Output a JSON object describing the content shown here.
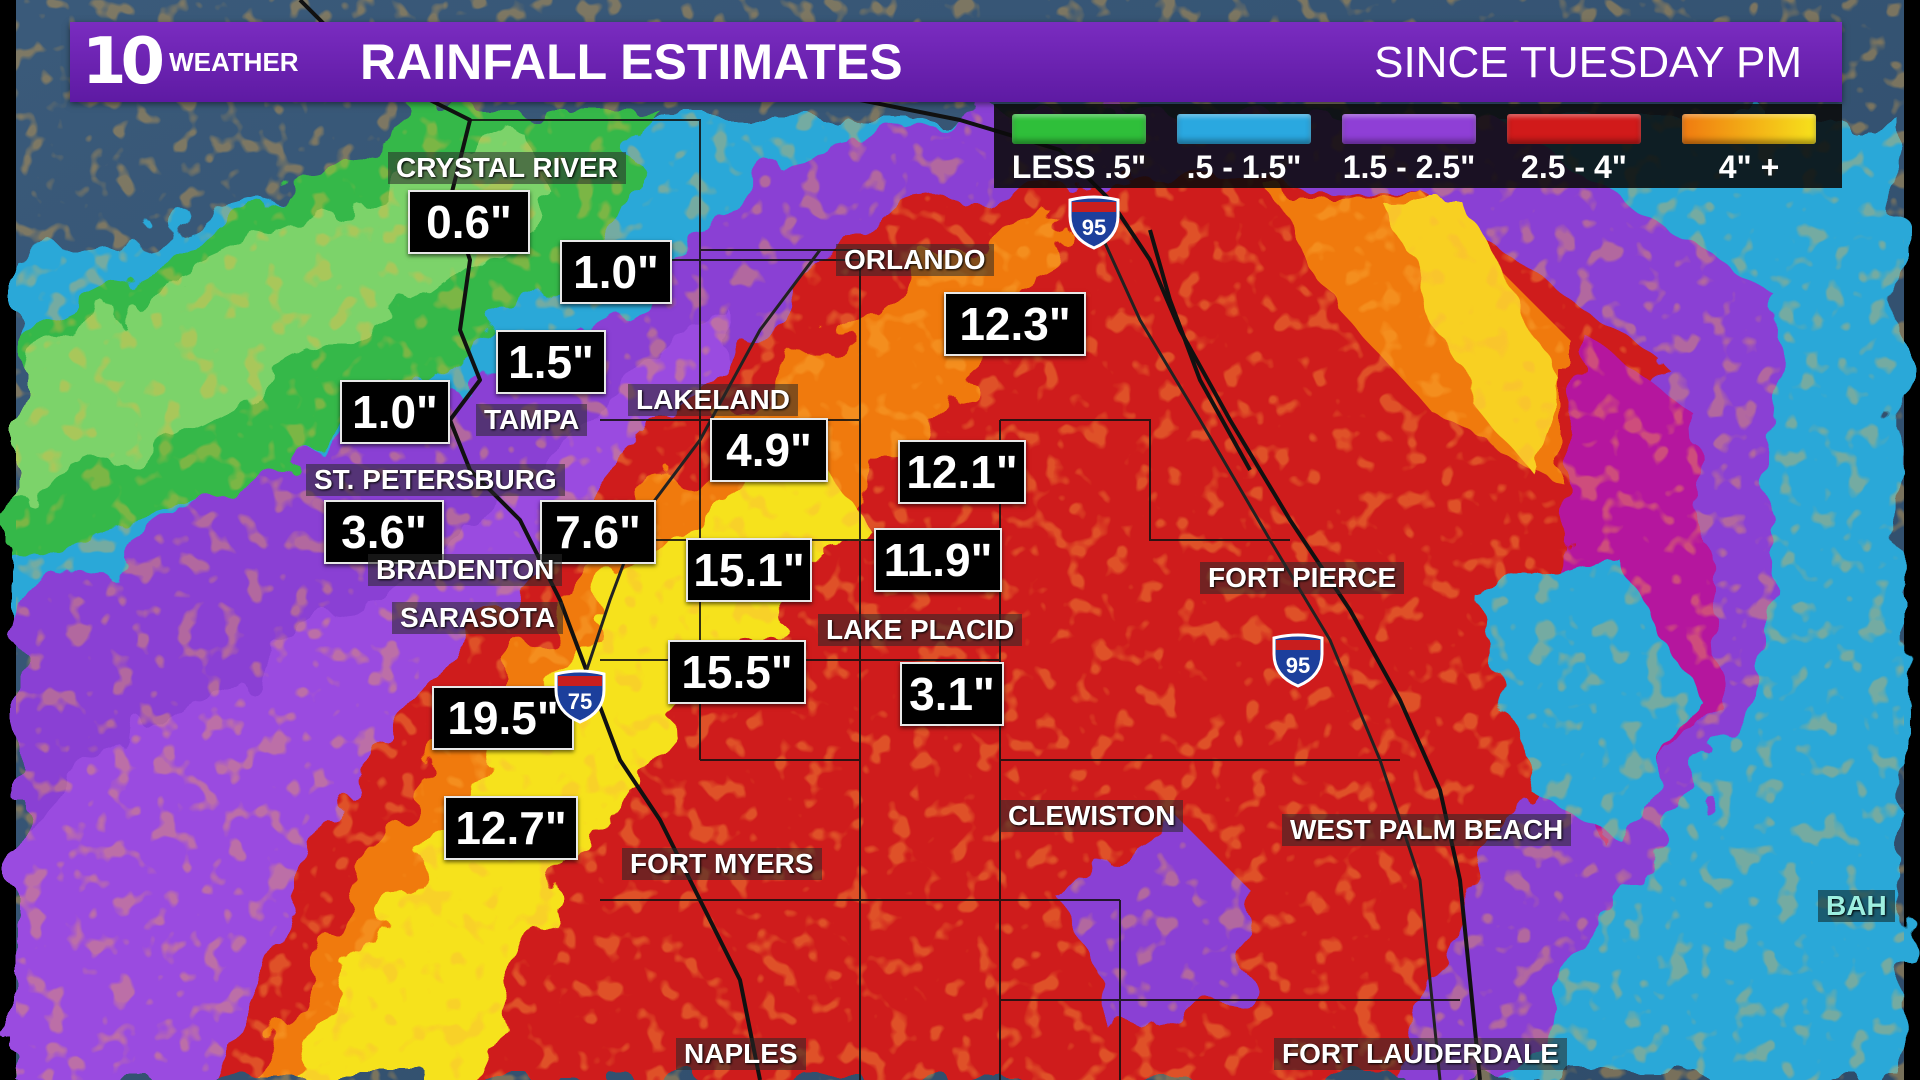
{
  "banner": {
    "logo_number": "10",
    "logo_word": "WEATHER",
    "title": "RAINFALL ESTIMATES",
    "subtitle": "SINCE TUESDAY PM",
    "color": "#6a22b1"
  },
  "legend": [
    {
      "label": "LESS .5\"",
      "color": "#2fbf3a"
    },
    {
      "label": ".5 - 1.5\"",
      "color": "#2aa8e0"
    },
    {
      "label": "1.5 - 2.5\"",
      "color": "#8f3fd6"
    },
    {
      "label": "2.5 - 4\"",
      "color": "#d11a1a"
    },
    {
      "label": "4\" +",
      "color": "#f4c21a"
    }
  ],
  "values": [
    "0.6\"",
    "1.0\"",
    "1.5\"",
    "1.0\"",
    "4.9\"",
    "12.3\"",
    "12.1\"",
    "3.6\"",
    "7.6\"",
    "15.1\"",
    "11.9\"",
    "15.5\"",
    "3.1\"",
    "19.5\"",
    "12.7\""
  ],
  "cities": [
    "CRYSTAL RIVER",
    "ORLANDO",
    "LAKELAND",
    "TAMPA",
    "ST. PETERSBURG",
    "BRADENTON",
    "SARASOTA",
    "LAKE PLACID",
    "FORT PIERCE",
    "CLEWISTON",
    "WEST PALM BEACH",
    "FORT MYERS",
    "NAPLES",
    "FORT LAUDERDALE",
    "BAH"
  ],
  "interstates": [
    "95",
    "95",
    "75"
  ],
  "map_icons": [
    "rainfall-radar-map",
    "interstate-shield-icon"
  ]
}
